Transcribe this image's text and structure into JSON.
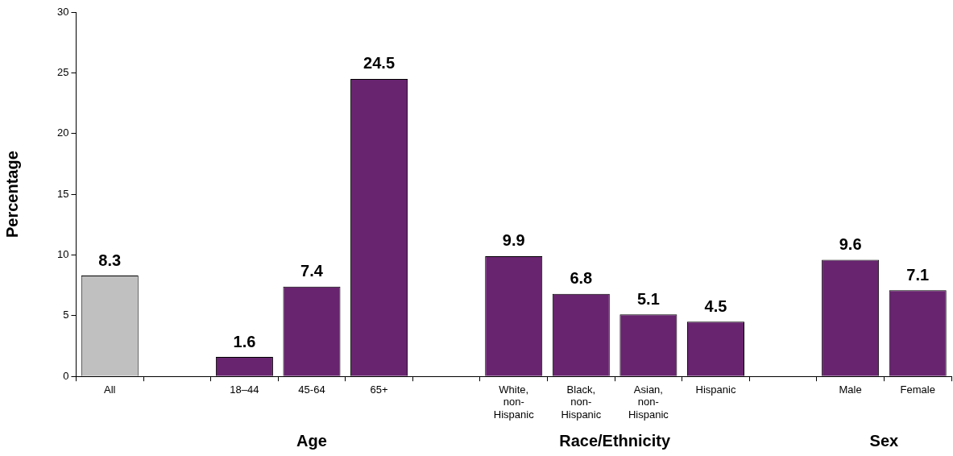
{
  "chart_data": {
    "type": "bar",
    "ylabel": "Percentage",
    "categories": [
      "All",
      null,
      "18–44",
      "45-64",
      "65+",
      null,
      "White, non-Hispanic",
      "Black, non-Hispanic",
      "Asian, non-Hispanic",
      "Hispanic",
      null,
      "Male",
      "Female"
    ],
    "values": [
      8.3,
      null,
      1.6,
      7.4,
      24.5,
      null,
      9.9,
      6.8,
      5.1,
      4.5,
      null,
      9.6,
      7.1
    ],
    "colors": [
      "#c0c0c0",
      null,
      "#68246f",
      "#68246f",
      "#68246f",
      null,
      "#68246f",
      "#68246f",
      "#68246f",
      "#68246f",
      null,
      "#68246f",
      "#68246f"
    ],
    "ylim": [
      0,
      30
    ],
    "yticks": [
      0,
      5,
      10,
      15,
      20,
      25,
      30
    ],
    "data_labels": true,
    "grid": false,
    "legend": false,
    "annotations": [
      "Age",
      "Race/Ethnicity",
      "Sex"
    ]
  }
}
